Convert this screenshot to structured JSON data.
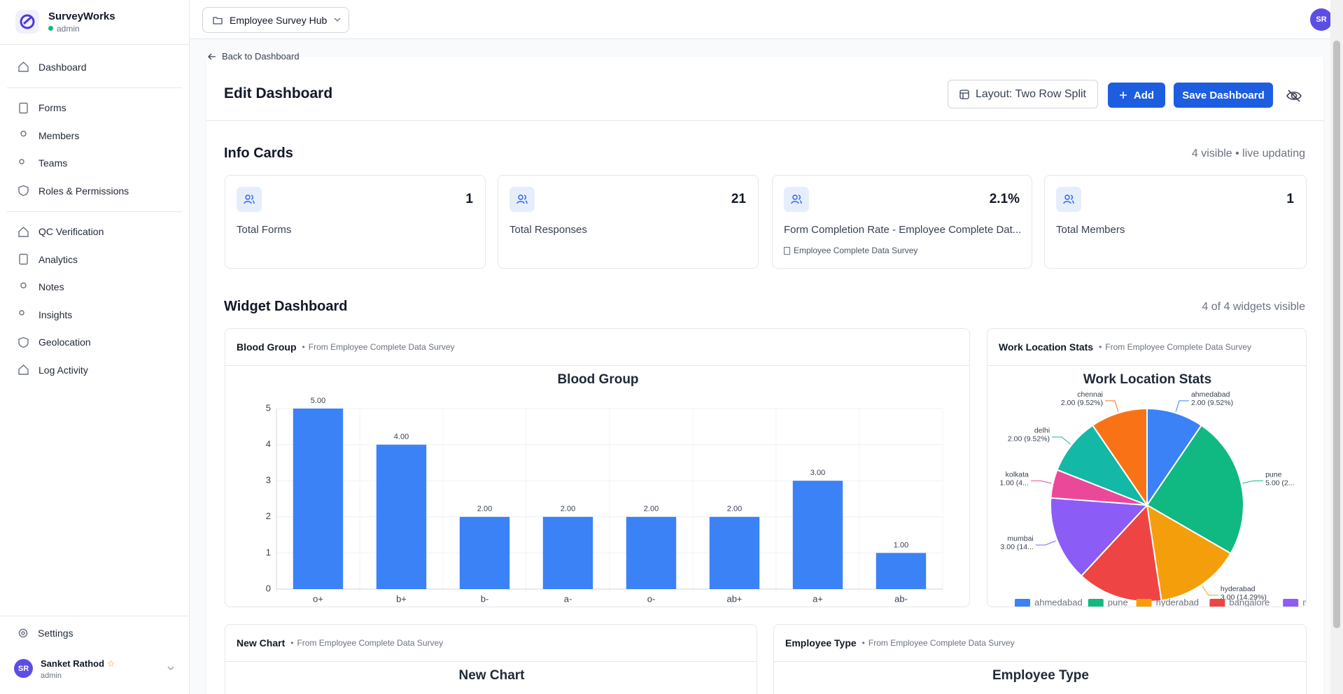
{
  "sidebar": {
    "brand": "SurveyWorks",
    "role": "admin",
    "nav_groups": [
      [
        "Dashboard"
      ],
      [
        "Forms",
        "Members",
        "Teams",
        "Roles & Permissions"
      ],
      [
        "QC Verification",
        "Analytics",
        "Notes",
        "Insights",
        "Geolocation",
        "Log Activity"
      ]
    ],
    "settings": "Settings",
    "user": {
      "initials": "SR",
      "name": "Sanket Rathod",
      "role": "admin"
    }
  },
  "topbar": {
    "workspace": "Employee Survey Hub",
    "avatar": "SR"
  },
  "page": {
    "back": "Back to Dashboard",
    "title": "Edit Dashboard",
    "buttons": {
      "layout": "Layout: Two Row Split",
      "add": "Add",
      "save": "Save Dashboard"
    }
  },
  "info_cards": {
    "title": "Info Cards",
    "status": "4 visible • live updating",
    "cards": [
      {
        "label": "Total Forms",
        "value": 1
      },
      {
        "label": "Total Responses",
        "value": 21
      },
      {
        "label": "Form Completion Rate - Employee Complete Dat...",
        "value": "2.1%",
        "source": "Employee Complete Data Survey"
      },
      {
        "label": "Total Members",
        "value": 1
      }
    ]
  },
  "widgets": {
    "title": "Widget Dashboard",
    "status": "4 of 4 widgets visible",
    "items": [
      {
        "name": "Blood Group",
        "source": "From Employee Complete Data Survey"
      },
      {
        "name": "Work Location Stats",
        "source": "From Employee Complete Data Survey"
      },
      {
        "name": "New Chart",
        "source": "From Employee Complete Data Survey"
      },
      {
        "name": "Employee Type",
        "source": "From Employee Complete Data Survey"
      }
    ]
  },
  "chart_data": [
    {
      "type": "bar",
      "title": "Blood Group",
      "categories": [
        "o+",
        "b+",
        "b-",
        "a-",
        "o-",
        "ab+",
        "a+",
        "ab-"
      ],
      "values": [
        5,
        4,
        2,
        2,
        2,
        2,
        3,
        1
      ],
      "value_labels": [
        "5.00",
        "4.00",
        "2.00",
        "2.00",
        "2.00",
        "2.00",
        "3.00",
        "1.00"
      ],
      "color": "#3b82f6",
      "ylim": [
        0,
        5
      ],
      "yticks": [
        0,
        1,
        2,
        3,
        4,
        5
      ],
      "grid": true
    },
    {
      "type": "pie",
      "title": "Work Location Stats",
      "categories": [
        "ahmedabad",
        "pune",
        "hyderabad",
        "bangalore",
        "mumbai",
        "kolkata",
        "delhi",
        "chennai"
      ],
      "values": [
        2,
        5,
        3,
        3,
        3,
        1,
        2,
        2
      ],
      "value_labels": [
        "2.00 (9.52%)",
        "5.00 (2...",
        "3.00 (14.29%)",
        null,
        "3.00 (14...",
        "1.00 (4...",
        "2.00 (9.52%)",
        "2.00 (9.52%)"
      ],
      "colors": [
        "#3b82f6",
        "#10b981",
        "#f59e0b",
        "#ef4444",
        "#8b5cf6",
        "#ec4899",
        "#14b8a6",
        "#f97316"
      ],
      "legend": "bottom"
    },
    {
      "type": "bar",
      "title": "New Chart"
    },
    {
      "type": "pie",
      "title": "Employee Type"
    }
  ]
}
